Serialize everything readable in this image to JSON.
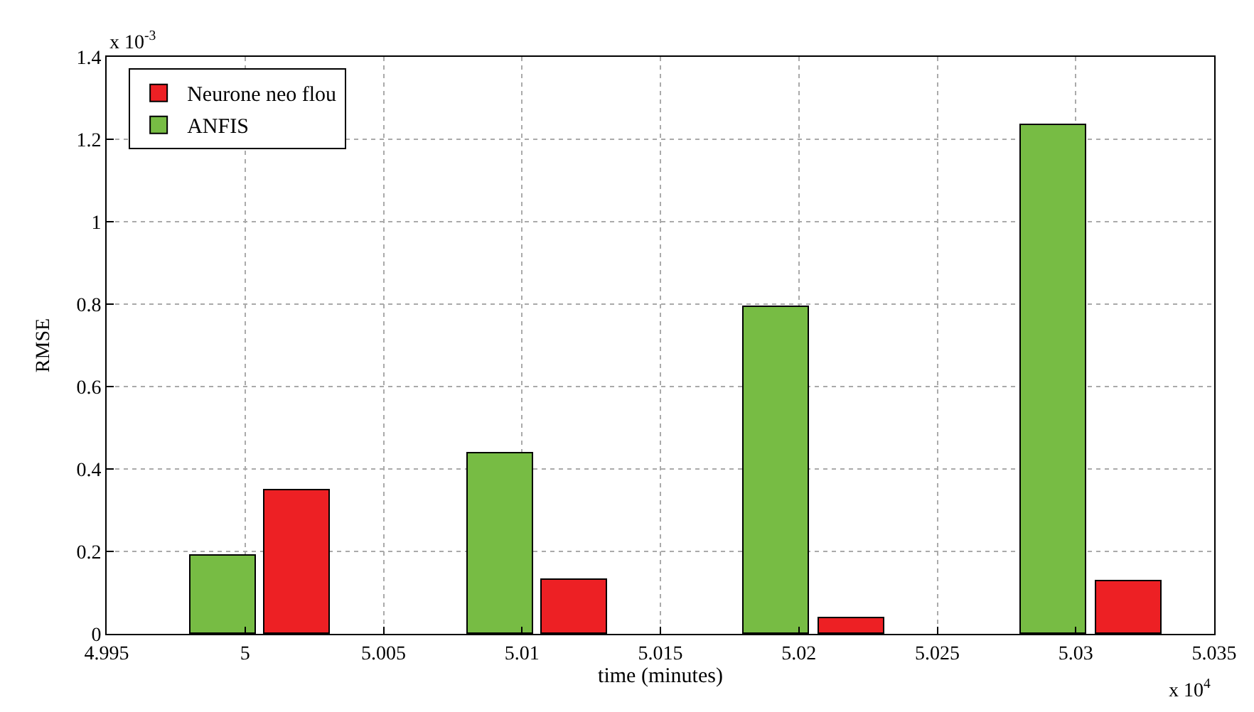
{
  "chart_data": {
    "type": "bar",
    "xlabel": "time (minutes)",
    "ylabel": "RMSE",
    "series": [
      {
        "name": "Neurone neo flou",
        "color": "#ed2024",
        "x": [
          5.0019,
          5.0119,
          5.0219,
          5.0319
        ],
        "values": [
          0.348,
          0.131,
          0.039,
          0.128
        ]
      },
      {
        "name": "ANFIS",
        "color": "#77bc44",
        "x": [
          4.9992,
          5.0092,
          5.0192,
          5.0292
        ],
        "values": [
          0.188,
          0.437,
          0.792,
          1.233
        ]
      }
    ],
    "xlim": [
      4.995,
      5.035
    ],
    "xticks": [
      4.995,
      5,
      5.005,
      5.01,
      5.015,
      5.02,
      5.025,
      5.03,
      5.035
    ],
    "ylim": [
      0,
      1.4
    ],
    "yticks": [
      0,
      0.2,
      0.4,
      0.6,
      0.8,
      1,
      1.2,
      1.4
    ],
    "annotations": [
      "x 10$^{-3}$",
      "x 10$^{4}$"
    ],
    "grid": true,
    "legend": "top left"
  }
}
